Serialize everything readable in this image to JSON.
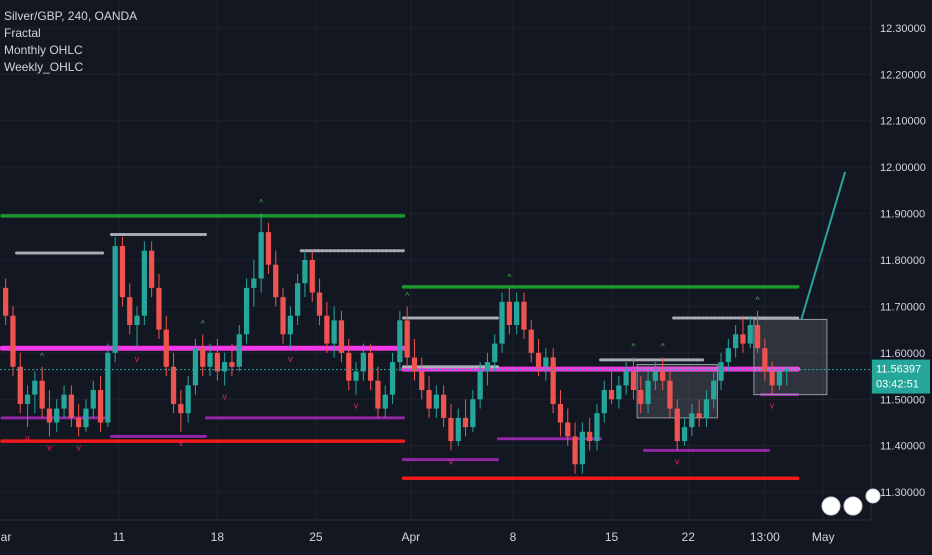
{
  "header": {
    "symbol_line": "Silver/GBP, 240, OANDA",
    "indicators": [
      "Fractal",
      "Monthly OHLC",
      "Weekly_OHLC"
    ]
  },
  "colors": {
    "background": "#131722",
    "grid": "#1e222d",
    "up": "#26a69a",
    "down": "#ef5350",
    "green_level": "#1b9e2f",
    "red_level": "#ff1a1a",
    "magenta_level": "#ff3bf2",
    "silver_level": "#b2b5be",
    "purple_level": "#9c27b0",
    "olive_level": "#9e8b3a",
    "price_tag": "#26a69a",
    "fractal_up": "#4caf50",
    "fractal_down": "#e91e63"
  },
  "chart_data": {
    "type": "candlestick",
    "title": "Silver/GBP, 240, OANDA",
    "ylim": [
      11.24,
      12.36
    ],
    "y_ticks": [
      "12.30000",
      "12.20000",
      "12.10000",
      "12.00000",
      "11.90000",
      "11.80000",
      "11.70000",
      "11.60000",
      "11.50000",
      "11.40000",
      "11.30000"
    ],
    "x_ticks": [
      "ar",
      "11",
      "18",
      "25",
      "Apr",
      "8",
      "15",
      "22",
      "13:00",
      "May"
    ],
    "grid": true,
    "current_price": "11.56397",
    "countdown": "03:42:51",
    "levels": [
      {
        "name": "monthly-high",
        "color": "green",
        "value": 11.895,
        "from": 0,
        "to": 55
      },
      {
        "name": "monthly-low",
        "color": "red",
        "value": 11.41,
        "from": 0,
        "to": 55
      },
      {
        "name": "monthly-open",
        "color": "magenta",
        "value": 11.61,
        "from": 0,
        "to": 55
      },
      {
        "name": "monthly-high-apr",
        "color": "green",
        "value": 11.742,
        "from": 55,
        "to": 109
      },
      {
        "name": "monthly-low-apr",
        "color": "red",
        "value": 11.33,
        "from": 55,
        "to": 109
      },
      {
        "name": "monthly-open-apr",
        "color": "magenta",
        "value": 11.565,
        "from": 55,
        "to": 109
      },
      {
        "name": "weekly-high-1",
        "color": "silver",
        "value": 11.815,
        "from": 2,
        "to": 14
      },
      {
        "name": "weekly-low-1",
        "color": "purple",
        "value": 11.46,
        "from": 0,
        "to": 14
      },
      {
        "name": "weekly-high-2",
        "color": "silver",
        "value": 11.855,
        "from": 15,
        "to": 28
      },
      {
        "name": "weekly-low-2",
        "color": "purple",
        "value": 11.42,
        "from": 15,
        "to": 28
      },
      {
        "name": "weekly-high-3",
        "color": "silver",
        "value": 11.82,
        "from": 41,
        "to": 55
      },
      {
        "name": "weekly-low-3",
        "color": "purple",
        "value": 11.46,
        "from": 28,
        "to": 55
      },
      {
        "name": "weekly-high-4",
        "color": "silver",
        "value": 11.675,
        "from": 55,
        "to": 68
      },
      {
        "name": "weekly-low-4",
        "color": "purple",
        "value": 11.37,
        "from": 55,
        "to": 68
      },
      {
        "name": "weekly-high-5",
        "color": "silver",
        "value": 11.57,
        "from": 55,
        "to": 68
      },
      {
        "name": "weekly-low-5",
        "color": "purple",
        "value": 11.415,
        "from": 68,
        "to": 82
      },
      {
        "name": "weekly-high-6",
        "color": "silver",
        "value": 11.585,
        "from": 82,
        "to": 96
      },
      {
        "name": "weekly-low-6",
        "color": "purple",
        "value": 11.39,
        "from": 88,
        "to": 105
      },
      {
        "name": "weekly-high-7",
        "color": "silver",
        "value": 11.675,
        "from": 92,
        "to": 109
      },
      {
        "name": "weekly-low-7",
        "color": "purple",
        "value": 11.51,
        "from": 104,
        "to": 109
      }
    ],
    "boxes": [
      {
        "from": 87,
        "to": 98,
        "low": 11.46,
        "high": 11.575
      },
      {
        "from": 103,
        "to": 113,
        "low": 11.51,
        "high": 11.672
      }
    ],
    "projection": {
      "from_bar": 109,
      "from_value": 11.672,
      "to_bar": 115,
      "to_value": 11.99
    },
    "candles": [
      [
        11.74,
        11.76,
        11.66,
        11.68
      ],
      [
        11.68,
        11.7,
        11.55,
        11.57
      ],
      [
        11.57,
        11.6,
        11.47,
        11.49
      ],
      [
        11.49,
        11.53,
        11.44,
        11.51
      ],
      [
        11.51,
        11.56,
        11.47,
        11.54
      ],
      [
        11.54,
        11.57,
        11.46,
        11.48
      ],
      [
        11.48,
        11.52,
        11.42,
        11.45
      ],
      [
        11.45,
        11.5,
        11.43,
        11.48
      ],
      [
        11.48,
        11.53,
        11.46,
        11.51
      ],
      [
        11.51,
        11.53,
        11.44,
        11.46
      ],
      [
        11.46,
        11.49,
        11.42,
        11.44
      ],
      [
        11.44,
        11.5,
        11.43,
        11.48
      ],
      [
        11.48,
        11.54,
        11.46,
        11.52
      ],
      [
        11.52,
        11.55,
        11.43,
        11.45
      ],
      [
        11.45,
        11.62,
        11.44,
        11.6
      ],
      [
        11.6,
        11.85,
        11.58,
        11.83
      ],
      [
        11.83,
        11.85,
        11.7,
        11.72
      ],
      [
        11.72,
        11.75,
        11.64,
        11.66
      ],
      [
        11.66,
        11.7,
        11.61,
        11.68
      ],
      [
        11.68,
        11.84,
        11.66,
        11.82
      ],
      [
        11.82,
        11.84,
        11.72,
        11.74
      ],
      [
        11.74,
        11.77,
        11.63,
        11.65
      ],
      [
        11.65,
        11.68,
        11.55,
        11.57
      ],
      [
        11.57,
        11.6,
        11.47,
        11.49
      ],
      [
        11.49,
        11.52,
        11.43,
        11.47
      ],
      [
        11.47,
        11.55,
        11.45,
        11.53
      ],
      [
        11.53,
        11.63,
        11.51,
        11.61
      ],
      [
        11.61,
        11.64,
        11.55,
        11.57
      ],
      [
        11.57,
        11.62,
        11.55,
        11.6
      ],
      [
        11.6,
        11.63,
        11.54,
        11.56
      ],
      [
        11.56,
        11.6,
        11.53,
        11.58
      ],
      [
        11.58,
        11.62,
        11.55,
        11.57
      ],
      [
        11.57,
        11.66,
        11.56,
        11.64
      ],
      [
        11.64,
        11.76,
        11.62,
        11.74
      ],
      [
        11.74,
        11.8,
        11.7,
        11.76
      ],
      [
        11.76,
        11.9,
        11.73,
        11.86
      ],
      [
        11.86,
        11.88,
        11.77,
        11.79
      ],
      [
        11.79,
        11.82,
        11.7,
        11.72
      ],
      [
        11.72,
        11.74,
        11.62,
        11.64
      ],
      [
        11.64,
        11.7,
        11.61,
        11.68
      ],
      [
        11.68,
        11.77,
        11.66,
        11.75
      ],
      [
        11.75,
        11.82,
        11.72,
        11.8
      ],
      [
        11.8,
        11.82,
        11.71,
        11.73
      ],
      [
        11.73,
        11.76,
        11.66,
        11.68
      ],
      [
        11.68,
        11.71,
        11.6,
        11.62
      ],
      [
        11.62,
        11.7,
        11.59,
        11.67
      ],
      [
        11.67,
        11.69,
        11.58,
        11.6
      ],
      [
        11.6,
        11.63,
        11.52,
        11.54
      ],
      [
        11.54,
        11.58,
        11.51,
        11.56
      ],
      [
        11.56,
        11.62,
        11.54,
        11.6
      ],
      [
        11.6,
        11.62,
        11.52,
        11.54
      ],
      [
        11.54,
        11.57,
        11.46,
        11.48
      ],
      [
        11.48,
        11.53,
        11.46,
        11.51
      ],
      [
        11.51,
        11.6,
        11.49,
        11.58
      ],
      [
        11.58,
        11.69,
        11.56,
        11.67
      ],
      [
        11.67,
        11.7,
        11.57,
        11.59
      ],
      [
        11.59,
        11.63,
        11.54,
        11.56
      ],
      [
        11.56,
        11.59,
        11.5,
        11.52
      ],
      [
        11.52,
        11.55,
        11.46,
        11.48
      ],
      [
        11.48,
        11.53,
        11.46,
        11.51
      ],
      [
        11.51,
        11.53,
        11.44,
        11.46
      ],
      [
        11.46,
        11.49,
        11.39,
        11.41
      ],
      [
        11.41,
        11.48,
        11.4,
        11.46
      ],
      [
        11.46,
        11.5,
        11.42,
        11.44
      ],
      [
        11.44,
        11.52,
        11.43,
        11.5
      ],
      [
        11.5,
        11.58,
        11.48,
        11.56
      ],
      [
        11.56,
        11.6,
        11.53,
        11.58
      ],
      [
        11.58,
        11.64,
        11.56,
        11.62
      ],
      [
        11.62,
        11.73,
        11.6,
        11.71
      ],
      [
        11.71,
        11.74,
        11.64,
        11.66
      ],
      [
        11.66,
        11.73,
        11.64,
        11.71
      ],
      [
        11.71,
        11.73,
        11.63,
        11.65
      ],
      [
        11.65,
        11.67,
        11.58,
        11.6
      ],
      [
        11.6,
        11.63,
        11.55,
        11.57
      ],
      [
        11.57,
        11.61,
        11.54,
        11.59
      ],
      [
        11.59,
        11.61,
        11.47,
        11.49
      ],
      [
        11.49,
        11.52,
        11.42,
        11.45
      ],
      [
        11.45,
        11.48,
        11.4,
        11.42
      ],
      [
        11.42,
        11.45,
        11.34,
        11.36
      ],
      [
        11.36,
        11.45,
        11.34,
        11.43
      ],
      [
        11.43,
        11.46,
        11.39,
        11.41
      ],
      [
        11.41,
        11.49,
        11.39,
        11.47
      ],
      [
        11.47,
        11.54,
        11.45,
        11.52
      ],
      [
        11.52,
        11.56,
        11.49,
        11.5
      ],
      [
        11.5,
        11.55,
        11.48,
        11.53
      ],
      [
        11.53,
        11.58,
        11.51,
        11.56
      ],
      [
        11.56,
        11.59,
        11.5,
        11.52
      ],
      [
        11.52,
        11.55,
        11.47,
        11.49
      ],
      [
        11.49,
        11.56,
        11.47,
        11.54
      ],
      [
        11.54,
        11.58,
        11.52,
        11.56
      ],
      [
        11.56,
        11.59,
        11.52,
        11.54
      ],
      [
        11.54,
        11.56,
        11.46,
        11.48
      ],
      [
        11.48,
        11.5,
        11.39,
        11.41
      ],
      [
        11.41,
        11.46,
        11.4,
        11.44
      ],
      [
        11.44,
        11.49,
        11.42,
        11.47
      ],
      [
        11.47,
        11.5,
        11.44,
        11.46
      ],
      [
        11.46,
        11.52,
        11.44,
        11.5
      ],
      [
        11.5,
        11.56,
        11.48,
        11.54
      ],
      [
        11.54,
        11.6,
        11.52,
        11.58
      ],
      [
        11.58,
        11.63,
        11.56,
        11.61
      ],
      [
        11.61,
        11.66,
        11.59,
        11.64
      ],
      [
        11.64,
        11.68,
        11.6,
        11.62
      ],
      [
        11.62,
        11.68,
        11.61,
        11.66
      ],
      [
        11.66,
        11.69,
        11.6,
        11.61
      ],
      [
        11.61,
        11.63,
        11.54,
        11.56
      ],
      [
        11.56,
        11.58,
        11.51,
        11.53
      ],
      [
        11.53,
        11.57,
        11.52,
        11.56
      ],
      [
        11.56,
        11.57,
        11.53,
        11.564
      ]
    ]
  }
}
